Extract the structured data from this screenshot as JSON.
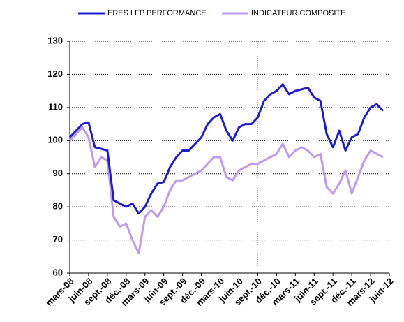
{
  "chart_data": {
    "type": "line",
    "categories": [
      "mars-08",
      null,
      null,
      "juin-08",
      null,
      null,
      "sept.-08",
      null,
      null,
      "déc.-08",
      null,
      null,
      "mars-09",
      null,
      null,
      "juin-09",
      null,
      null,
      "sept.-09",
      null,
      null,
      "déc.-09",
      null,
      null,
      "mars-10",
      null,
      null,
      "juin-10",
      null,
      null,
      "sept.-10",
      null,
      null,
      "déc.-10",
      null,
      null,
      "mars-11",
      null,
      null,
      "juin-11",
      null,
      null,
      "sept.-11",
      null,
      null,
      "déc.-11",
      null,
      null,
      "mars-12",
      null,
      null,
      "juin-12"
    ],
    "series": [
      {
        "name": "ERES LFP PERFORMANCE",
        "color": "#1c1cd8",
        "values": [
          101,
          103,
          105,
          105.5,
          98,
          97.5,
          97,
          82,
          81,
          80,
          81,
          78,
          80,
          84,
          87,
          87.5,
          92,
          95,
          97,
          97,
          99,
          101,
          105,
          107,
          108,
          103,
          100,
          104,
          105,
          105,
          107,
          112,
          114,
          115,
          117,
          114,
          115,
          115.5,
          116,
          113,
          112,
          102,
          98,
          103,
          97,
          101,
          102,
          107,
          110,
          111,
          109,
          null
        ]
      },
      {
        "name": "INDICATEUR COMPOSITE",
        "color": "#bf99ef",
        "values": [
          100,
          102,
          104,
          101,
          92,
          95,
          94,
          77,
          74,
          75,
          70,
          66,
          77,
          79,
          77,
          80,
          85,
          88,
          88,
          89,
          90,
          91,
          93,
          95,
          95,
          89,
          88,
          91,
          92,
          93,
          93,
          94,
          95,
          96,
          99,
          95,
          97,
          98,
          97,
          95,
          96,
          86,
          84,
          87,
          91,
          84,
          89,
          94,
          97,
          96,
          95,
          null
        ]
      }
    ],
    "ylim": [
      60,
      130
    ],
    "yticks": [
      60,
      70,
      80,
      90,
      100,
      110,
      120,
      130
    ],
    "grid": true
  }
}
